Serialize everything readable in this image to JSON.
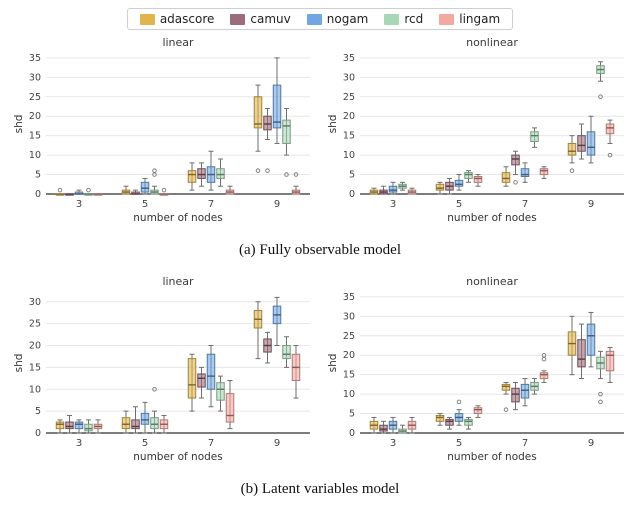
{
  "legend": {
    "items": [
      {
        "label": "adascore",
        "color": "#e1b54b"
      },
      {
        "label": "camuv",
        "color": "#9d6b79"
      },
      {
        "label": "nogam",
        "color": "#70a7e3"
      },
      {
        "label": "rcd",
        "color": "#a7d7b6"
      },
      {
        "label": "lingam",
        "color": "#f5a8a0"
      }
    ]
  },
  "captions": {
    "a": "(a) Fully observable model",
    "b": "(b) Latent variables model"
  },
  "chart_data": [
    {
      "type": "boxplot",
      "panel": "a",
      "title": "linear",
      "xlabel": "number of nodes",
      "ylabel": "shd",
      "ylim": [
        0,
        36
      ],
      "yticks": [
        0,
        5,
        10,
        15,
        20,
        25,
        30,
        35
      ],
      "categories": [
        "3",
        "5",
        "7",
        "9"
      ],
      "grid": true,
      "series": [
        {
          "name": "adascore",
          "color": "#e1b54b",
          "boxes": [
            [
              0,
              0,
              0,
              0,
              0
            ],
            [
              0,
              0,
              0.5,
              1,
              2
            ],
            [
              1,
              3,
              5,
              6,
              8
            ],
            [
              11,
              17,
              18,
              25,
              28
            ]
          ],
          "outliers": [
            [
              0,
              1
            ],
            [
              3,
              6
            ]
          ]
        },
        {
          "name": "camuv",
          "color": "#9d6b79",
          "boxes": [
            [
              0,
              0,
              0,
              0,
              0
            ],
            [
              0,
              0,
              0,
              0.5,
              1
            ],
            [
              2,
              4,
              5,
              6.5,
              8
            ],
            [
              14,
              16.5,
              18,
              20,
              22
            ]
          ],
          "outliers": [
            [
              3,
              6
            ]
          ]
        },
        {
          "name": "nogam",
          "color": "#70a7e3",
          "boxes": [
            [
              0,
              0,
              0,
              0.5,
              1
            ],
            [
              0,
              0.5,
              1.5,
              3,
              4
            ],
            [
              1,
              3,
              5,
              7,
              11
            ],
            [
              13,
              17,
              18.5,
              28,
              35
            ]
          ],
          "outliers": []
        },
        {
          "name": "rcd",
          "color": "#a7d7b6",
          "boxes": [
            [
              0,
              0,
              0,
              0,
              0
            ],
            [
              0,
              0,
              0.5,
              1,
              2
            ],
            [
              2,
              4,
              5,
              6.5,
              9
            ],
            [
              10,
              13,
              17.5,
              19,
              22
            ]
          ],
          "outliers": [
            [
              0,
              1
            ],
            [
              1,
              5
            ],
            [
              1,
              6
            ],
            [
              3,
              5
            ]
          ]
        },
        {
          "name": "lingam",
          "color": "#f5a8a0",
          "boxes": [
            [
              0,
              0,
              0,
              0,
              0
            ],
            [
              0,
              0,
              0,
              0,
              0
            ],
            [
              0,
              0,
              0.5,
              1,
              2
            ],
            [
              0,
              0,
              0.5,
              1,
              2
            ]
          ],
          "outliers": [
            [
              1,
              1
            ],
            [
              3,
              5
            ]
          ]
        }
      ]
    },
    {
      "type": "boxplot",
      "panel": "a",
      "title": "nonlinear",
      "xlabel": "number of nodes",
      "ylabel": "shd",
      "ylim": [
        0,
        36
      ],
      "yticks": [
        0,
        5,
        10,
        15,
        20,
        25,
        30,
        35
      ],
      "categories": [
        "3",
        "5",
        "7",
        "9"
      ],
      "grid": true,
      "series": [
        {
          "name": "adascore",
          "color": "#e1b54b",
          "boxes": [
            [
              0,
              0,
              0.5,
              1,
              1.5
            ],
            [
              0,
              1,
              1.5,
              2.5,
              3
            ],
            [
              2,
              3,
              4,
              5.5,
              7
            ],
            [
              8,
              10,
              11,
              13,
              15
            ]
          ],
          "outliers": [
            [
              3,
              6
            ]
          ]
        },
        {
          "name": "camuv",
          "color": "#9d6b79",
          "boxes": [
            [
              0,
              0,
              0.5,
              1,
              2
            ],
            [
              0,
              1,
              2,
              3,
              4
            ],
            [
              5,
              7.5,
              9,
              10,
              11
            ],
            [
              9,
              11,
              12.5,
              15,
              18
            ]
          ],
          "outliers": [
            [
              2,
              3
            ]
          ]
        },
        {
          "name": "nogam",
          "color": "#70a7e3",
          "boxes": [
            [
              0,
              0.5,
              1,
              2,
              3
            ],
            [
              1,
              2,
              2.5,
              3.5,
              5
            ],
            [
              3,
              4.5,
              5,
              6.5,
              8
            ],
            [
              8,
              10,
              12,
              16,
              20
            ]
          ],
          "outliers": []
        },
        {
          "name": "rcd",
          "color": "#a7d7b6",
          "boxes": [
            [
              1,
              1.5,
              2,
              2.5,
              3
            ],
            [
              3,
              4,
              5,
              5.5,
              6
            ],
            [
              12,
              13.5,
              15,
              16,
              17
            ],
            [
              29,
              31,
              32,
              33,
              34
            ]
          ],
          "outliers": [
            [
              3,
              25
            ]
          ]
        },
        {
          "name": "lingam",
          "color": "#f5a8a0",
          "boxes": [
            [
              0,
              0,
              0.5,
              1,
              1.5
            ],
            [
              2,
              3,
              4,
              4.5,
              5
            ],
            [
              4,
              5,
              6,
              6.5,
              7
            ],
            [
              13,
              15.5,
              17,
              18,
              19
            ]
          ],
          "outliers": [
            [
              3,
              10
            ]
          ]
        }
      ]
    },
    {
      "type": "boxplot",
      "panel": "b",
      "title": "linear",
      "xlabel": "number of nodes",
      "ylabel": "shd",
      "ylim": [
        0,
        32
      ],
      "yticks": [
        0,
        5,
        10,
        15,
        20,
        25,
        30
      ],
      "categories": [
        "3",
        "5",
        "7",
        "9"
      ],
      "grid": true,
      "series": [
        {
          "name": "adascore",
          "color": "#e1b54b",
          "boxes": [
            [
              0,
              1,
              2,
              2.5,
              3
            ],
            [
              0,
              1,
              2,
              3.5,
              5
            ],
            [
              5,
              8,
              11,
              17,
              18
            ],
            [
              17,
              24,
              26,
              28,
              30
            ]
          ],
          "outliers": []
        },
        {
          "name": "camuv",
          "color": "#9d6b79",
          "boxes": [
            [
              0,
              1,
              1.5,
              2.5,
              4
            ],
            [
              0,
              1,
              1.5,
              3,
              6
            ],
            [
              8,
              10.5,
              12.5,
              13.5,
              15
            ],
            [
              16,
              18.5,
              20,
              21.5,
              23
            ]
          ],
          "outliers": []
        },
        {
          "name": "nogam",
          "color": "#70a7e3",
          "boxes": [
            [
              0,
              1,
              2,
              2.5,
              3
            ],
            [
              0,
              2,
              3,
              4.5,
              7
            ],
            [
              6,
              10,
              13,
              18,
              20
            ],
            [
              20,
              25,
              27,
              29,
              31
            ]
          ],
          "outliers": []
        },
        {
          "name": "rcd",
          "color": "#a7d7b6",
          "boxes": [
            [
              0,
              0.5,
              1,
              2,
              3
            ],
            [
              0,
              1,
              2,
              3.5,
              5
            ],
            [
              5,
              7.5,
              10,
              11.5,
              13
            ],
            [
              15,
              17,
              18,
              20,
              22
            ]
          ],
          "outliers": [
            [
              1,
              10
            ]
          ]
        },
        {
          "name": "lingam",
          "color": "#f5a8a0",
          "boxes": [
            [
              0,
              1,
              1.5,
              2,
              3
            ],
            [
              0,
              1,
              2,
              3,
              4
            ],
            [
              1,
              2.5,
              4,
              9,
              12
            ],
            [
              8,
              12,
              15,
              18,
              20
            ]
          ],
          "outliers": []
        }
      ]
    },
    {
      "type": "boxplot",
      "panel": "b",
      "title": "nonlinear",
      "xlabel": "number of nodes",
      "ylabel": "shd",
      "ylim": [
        0,
        36
      ],
      "yticks": [
        0,
        5,
        10,
        15,
        20,
        25,
        30,
        35
      ],
      "categories": [
        "3",
        "5",
        "7",
        "9"
      ],
      "grid": true,
      "series": [
        {
          "name": "adascore",
          "color": "#e1b54b",
          "boxes": [
            [
              0,
              1,
              2,
              3,
              4
            ],
            [
              2,
              3,
              4,
              4.5,
              5
            ],
            [
              10,
              11,
              12,
              12.5,
              13
            ],
            [
              15,
              20,
              23,
              26,
              30
            ]
          ],
          "outliers": [
            [
              2,
              6
            ]
          ]
        },
        {
          "name": "camuv",
          "color": "#9d6b79",
          "boxes": [
            [
              0,
              0.5,
              1,
              2,
              3
            ],
            [
              1,
              2,
              3,
              3.5,
              4
            ],
            [
              6,
              8,
              10,
              11.5,
              13
            ],
            [
              14,
              17,
              19,
              24,
              28
            ]
          ],
          "outliers": []
        },
        {
          "name": "nogam",
          "color": "#70a7e3",
          "boxes": [
            [
              0,
              1,
              2,
              3,
              4
            ],
            [
              2,
              3,
              4,
              5,
              6
            ],
            [
              7,
              9,
              11,
              12.5,
              14
            ],
            [
              17,
              20,
              25,
              28,
              31
            ]
          ],
          "outliers": [
            [
              1,
              8
            ]
          ]
        },
        {
          "name": "rcd",
          "color": "#a7d7b6",
          "boxes": [
            [
              0,
              0,
              0.5,
              1,
              2
            ],
            [
              1,
              2,
              3,
              3.5,
              4
            ],
            [
              10,
              11,
              12,
              13,
              14
            ],
            [
              14,
              16.5,
              18,
              19.5,
              21
            ]
          ],
          "outliers": [
            [
              3,
              8
            ],
            [
              3,
              10
            ]
          ]
        },
        {
          "name": "lingam",
          "color": "#f5a8a0",
          "boxes": [
            [
              0,
              1,
              2,
              3,
              4
            ],
            [
              4,
              5,
              6,
              6.5,
              7
            ],
            [
              13,
              14,
              15,
              15.5,
              16
            ],
            [
              13,
              16,
              20,
              21,
              22
            ]
          ],
          "outliers": [
            [
              2,
              19
            ],
            [
              2,
              20
            ]
          ]
        }
      ]
    }
  ]
}
